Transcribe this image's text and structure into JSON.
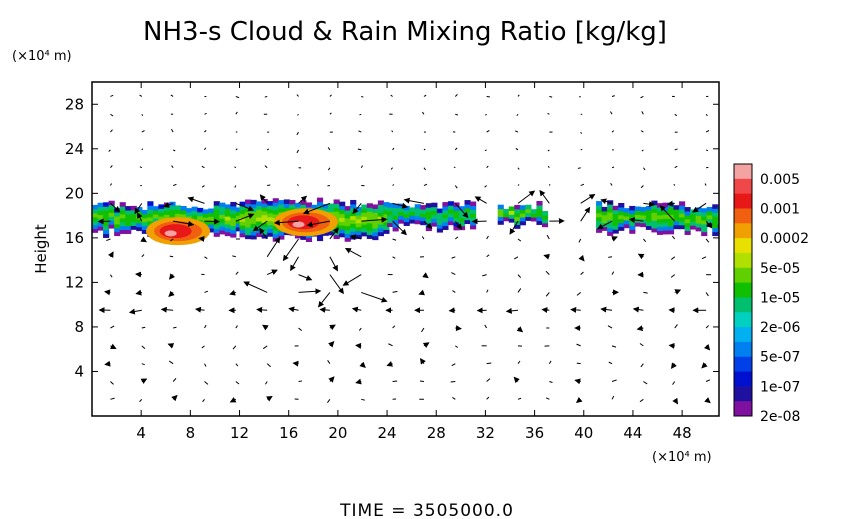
{
  "chart_data": {
    "type": "heatmap",
    "title": "NH3-s Cloud & Rain Mixing Ratio [kg/kg]",
    "ylabel": "Height",
    "y_unit_label": "(×10⁴ m)",
    "x_unit_label": "(×10⁴ m)",
    "footer": "TIME = 3505000.0",
    "xlim": [
      0,
      51
    ],
    "ylim": [
      0,
      30
    ],
    "x_ticks": [
      "4",
      "8",
      "12",
      "16",
      "20",
      "24",
      "28",
      "32",
      "36",
      "40",
      "44",
      "48"
    ],
    "y_ticks": [
      "4",
      "8",
      "12",
      "16",
      "20",
      "24",
      "28"
    ],
    "colorbar": {
      "labels": [
        "0.005",
        "0.001",
        "0.0002",
        "5e-05",
        "1e-05",
        "2e-06",
        "5e-07",
        "1e-07",
        "2e-08"
      ],
      "colors": [
        "#f4a3a3",
        "#f04848",
        "#e81818",
        "#f06010",
        "#f0a000",
        "#e8e000",
        "#b0e000",
        "#60d000",
        "#10c000",
        "#00c070",
        "#00d0c0",
        "#00b0f0",
        "#0080f0",
        "#0040e8",
        "#0010d0",
        "#2010a0",
        "#8010a0"
      ]
    },
    "cloud_regions": [
      {
        "x0": 0,
        "x1": 12,
        "y0": 16.0,
        "y1": 19.2,
        "level": 3
      },
      {
        "x0": 12,
        "x1": 24,
        "y0": 15.6,
        "y1": 19.4,
        "level": 4
      },
      {
        "x0": 24,
        "x1": 31,
        "y0": 16.5,
        "y1": 19.2,
        "level": 2
      },
      {
        "x0": 33,
        "x1": 37,
        "y0": 16.8,
        "y1": 19.0,
        "level": 3
      },
      {
        "x0": 41,
        "x1": 51,
        "y0": 16.2,
        "y1": 19.2,
        "level": 3
      }
    ],
    "cloud_cores": [
      {
        "x": 16.8,
        "y": 17.4,
        "value": 0.0012
      },
      {
        "x": 6.4,
        "y": 16.6,
        "value": 0.0008
      }
    ],
    "grid": false,
    "vectors": "wind field arrows overlaid"
  }
}
